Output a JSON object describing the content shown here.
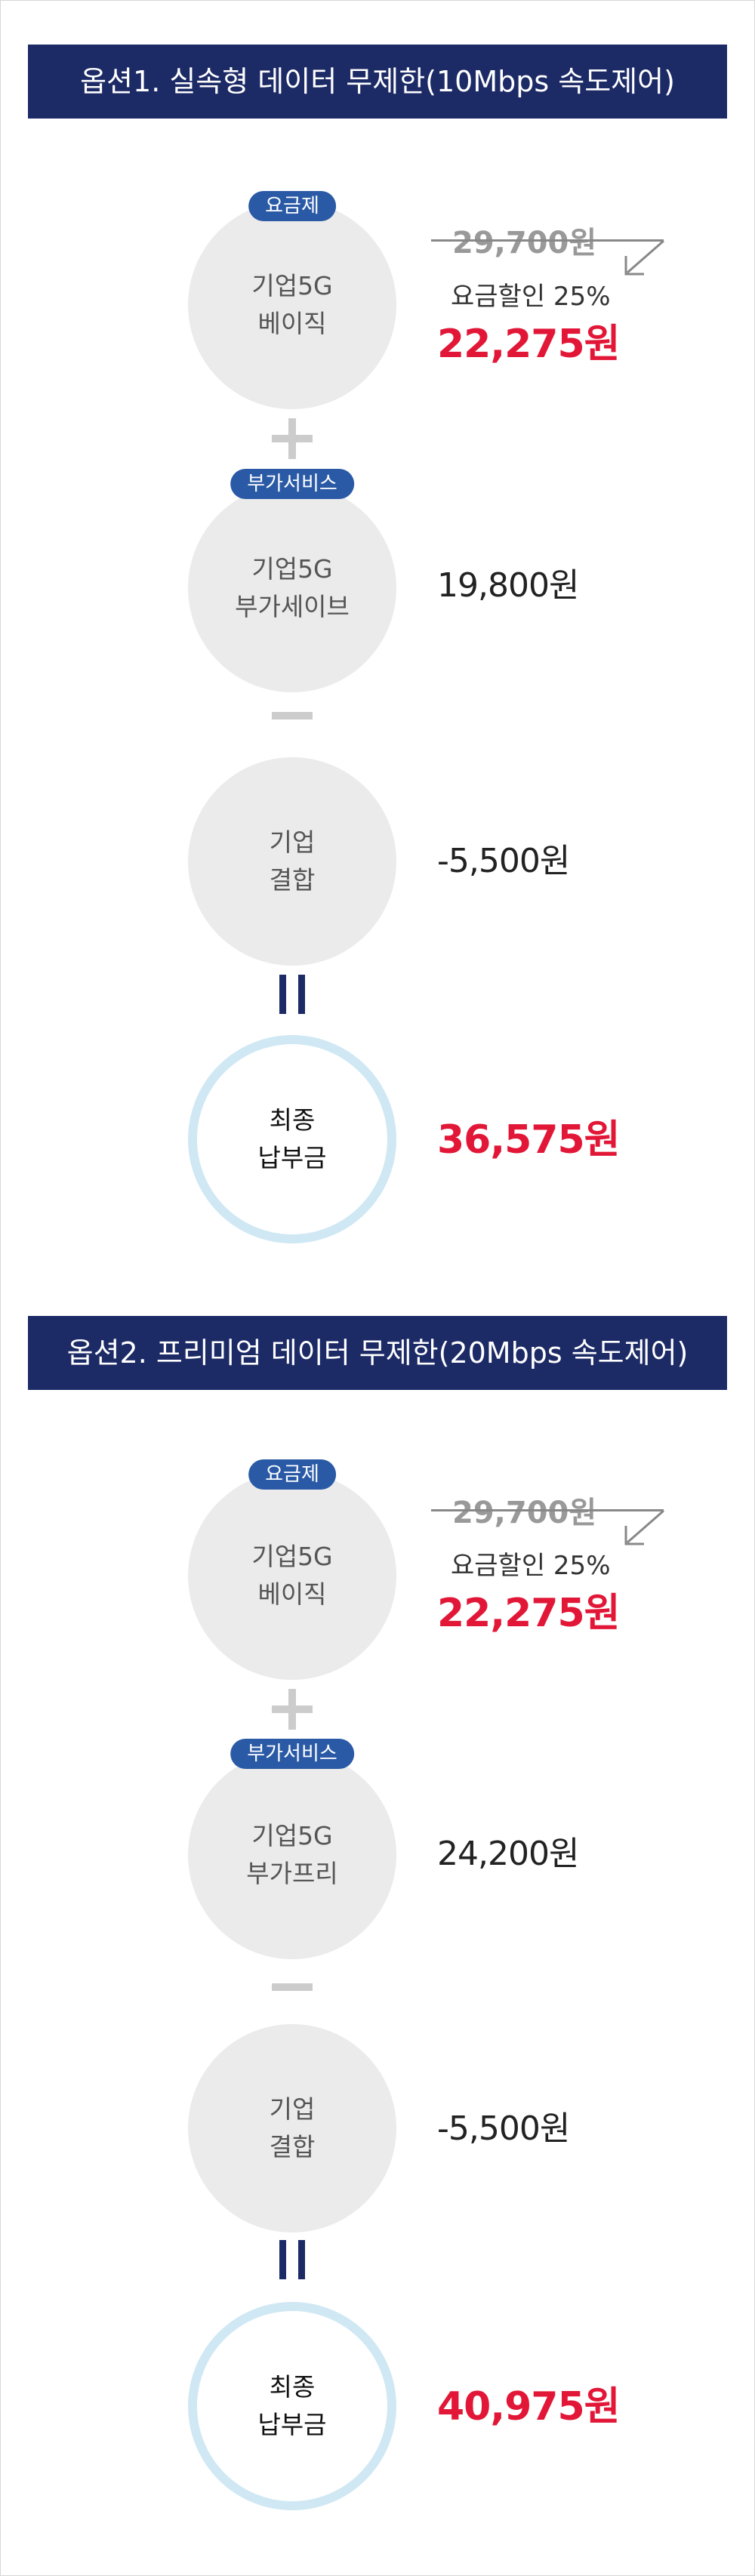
{
  "options": [
    {
      "header": "옵션1. 실속형 데이터 무제한(10Mbps 속도제어)",
      "plan_badge": "요금제",
      "plan_name_line1": "기업5G",
      "plan_name_line2": "베이직",
      "original_price": "29,700원",
      "discount_label": "요금할인 25%",
      "discounted_price": "22,275원",
      "addon_badge": "부가서비스",
      "addon_name_line1": "기업5G",
      "addon_name_line2": "부가세이브",
      "addon_price": "19,800원",
      "combo_name_line1": "기업",
      "combo_name_line2": "결합",
      "combo_price": "-5,500원",
      "total_line1": "최종",
      "total_line2": "납부금",
      "total_price": "36,575원"
    },
    {
      "header": "옵션2. 프리미엄 데이터 무제한(20Mbps 속도제어)",
      "plan_badge": "요금제",
      "plan_name_line1": "기업5G",
      "plan_name_line2": "베이직",
      "original_price": "29,700원",
      "discount_label": "요금할인 25%",
      "discounted_price": "22,275원",
      "addon_badge": "부가서비스",
      "addon_name_line1": "기업5G",
      "addon_name_line2": "부가프리",
      "addon_price": "24,200원",
      "combo_name_line1": "기업",
      "combo_name_line2": "결합",
      "combo_price": "-5,500원",
      "total_line1": "최종",
      "total_line2": "납부금",
      "total_price": "40,975원"
    }
  ],
  "colors": {
    "header_bg": "#1c2a66",
    "badge_bg": "#2a5aa6",
    "circle_bg": "#ebebeb",
    "total_ring": "#cfe8f4",
    "highlight_red": "#e21737",
    "equals_bar": "#1c2a66"
  }
}
